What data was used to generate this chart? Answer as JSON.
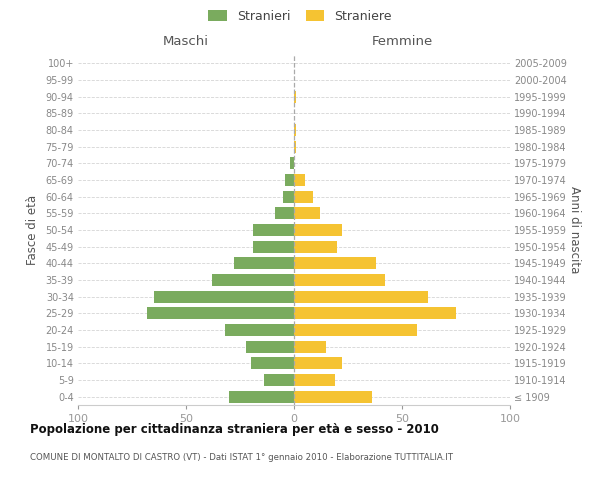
{
  "age_groups": [
    "100+",
    "95-99",
    "90-94",
    "85-89",
    "80-84",
    "75-79",
    "70-74",
    "65-69",
    "60-64",
    "55-59",
    "50-54",
    "45-49",
    "40-44",
    "35-39",
    "30-34",
    "25-29",
    "20-24",
    "15-19",
    "10-14",
    "5-9",
    "0-4"
  ],
  "birth_years": [
    "≤ 1909",
    "1910-1914",
    "1915-1919",
    "1920-1924",
    "1925-1929",
    "1930-1934",
    "1935-1939",
    "1940-1944",
    "1945-1949",
    "1950-1954",
    "1955-1959",
    "1960-1964",
    "1965-1969",
    "1970-1974",
    "1975-1979",
    "1980-1984",
    "1985-1989",
    "1990-1994",
    "1995-1999",
    "2000-2004",
    "2005-2009"
  ],
  "males": [
    0,
    0,
    0,
    0,
    0,
    0,
    2,
    4,
    5,
    9,
    19,
    19,
    28,
    38,
    65,
    68,
    32,
    22,
    20,
    14,
    30
  ],
  "females": [
    0,
    0,
    1,
    0,
    1,
    1,
    0,
    5,
    9,
    12,
    22,
    20,
    38,
    42,
    62,
    75,
    57,
    15,
    22,
    19,
    36
  ],
  "male_color": "#7aab5e",
  "female_color": "#f5c332",
  "background_color": "#ffffff",
  "grid_color": "#d5d5d5",
  "title": "Popolazione per cittadinanza straniera per età e sesso - 2010",
  "subtitle": "COMUNE DI MONTALTO DI CASTRO (VT) - Dati ISTAT 1° gennaio 2010 - Elaborazione TUTTITALIA.IT",
  "left_header": "Maschi",
  "right_header": "Femmine",
  "y_left_label": "Fasce di età",
  "y_right_label": "Anni di nascita",
  "xlim": 100,
  "legend_stranieri": "Stranieri",
  "legend_straniere": "Straniere"
}
